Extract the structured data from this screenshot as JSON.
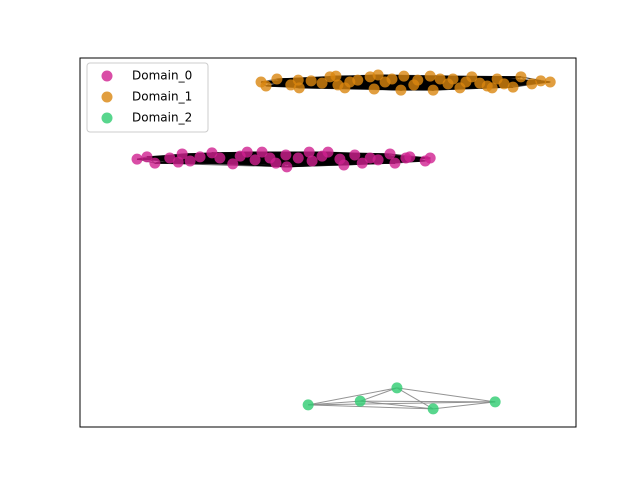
{
  "chart_data": {
    "type": "network",
    "xlim": [
      0,
      1
    ],
    "ylim": [
      0,
      1
    ],
    "legend": "upper left",
    "series": [
      {
        "name": "Domain_0",
        "color": "#d02090",
        "edge_color": "#000000",
        "x": [
          0.115,
          0.135,
          0.151,
          0.181,
          0.198,
          0.206,
          0.222,
          0.242,
          0.266,
          0.282,
          0.308,
          0.323,
          0.337,
          0.353,
          0.367,
          0.383,
          0.395,
          0.415,
          0.417,
          0.44,
          0.462,
          0.468,
          0.488,
          0.5,
          0.524,
          0.532,
          0.554,
          0.569,
          0.585,
          0.601,
          0.625,
          0.635,
          0.657,
          0.665,
          0.696,
          0.706
        ],
        "values": [
          0.726,
          0.732,
          0.715,
          0.729,
          0.718,
          0.74,
          0.721,
          0.732,
          0.743,
          0.729,
          0.713,
          0.734,
          0.745,
          0.724,
          0.745,
          0.729,
          0.715,
          0.737,
          0.705,
          0.729,
          0.745,
          0.721,
          0.734,
          0.745,
          0.726,
          0.71,
          0.737,
          0.715,
          0.729,
          0.724,
          0.74,
          0.715,
          0.729,
          0.732,
          0.721,
          0.729
        ]
      },
      {
        "name": "Domain_1",
        "color": "#d9860f",
        "edge_color": "#000000",
        "x": [
          0.365,
          0.375,
          0.397,
          0.425,
          0.44,
          0.442,
          0.466,
          0.488,
          0.504,
          0.516,
          0.52,
          0.534,
          0.544,
          0.56,
          0.585,
          0.593,
          0.601,
          0.615,
          0.629,
          0.647,
          0.653,
          0.673,
          0.681,
          0.706,
          0.712,
          0.726,
          0.742,
          0.752,
          0.766,
          0.778,
          0.79,
          0.806,
          0.821,
          0.831,
          0.841,
          0.855,
          0.873,
          0.889,
          0.911,
          0.929,
          0.948
        ],
        "values": [
          0.935,
          0.924,
          0.943,
          0.927,
          0.94,
          0.919,
          0.938,
          0.932,
          0.949,
          0.951,
          0.927,
          0.919,
          0.935,
          0.94,
          0.949,
          0.916,
          0.954,
          0.935,
          0.943,
          0.913,
          0.951,
          0.927,
          0.94,
          0.951,
          0.913,
          0.943,
          0.93,
          0.943,
          0.919,
          0.935,
          0.949,
          0.932,
          0.924,
          0.919,
          0.943,
          0.93,
          0.921,
          0.949,
          0.93,
          0.938,
          0.935
        ]
      },
      {
        "name": "Domain_2",
        "color": "#2ecc71",
        "edge_color": "#888888",
        "x": [
          0.46,
          0.565,
          0.639,
          0.712,
          0.837
        ],
        "values": [
          0.06,
          0.07,
          0.106,
          0.049,
          0.068
        ]
      }
    ]
  }
}
